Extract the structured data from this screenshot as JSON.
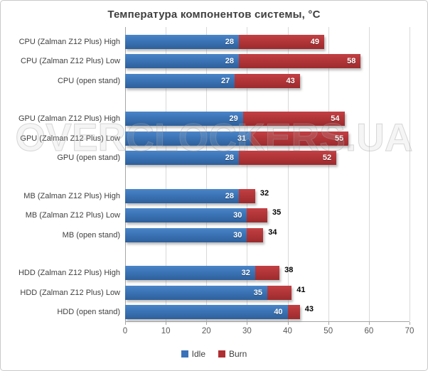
{
  "title": "Температура компонентов системы, °C",
  "watermark": "OVERCLOCKERS.UA",
  "legend": {
    "items": [
      {
        "label": "Idle",
        "color": "#3a72b9"
      },
      {
        "label": "Burn",
        "color": "#af2f32"
      }
    ]
  },
  "colors": {
    "idle_gradient_top": "#4a85c8",
    "idle_gradient_bottom": "#2e5f9a",
    "burn_gradient_top": "#c24044",
    "burn_gradient_bottom": "#9c2b2e",
    "gridline": "#d9d9d9",
    "axis_line": "#a6a6a6",
    "title_text": "#3f3f3f",
    "tick_text": "#595959"
  },
  "chart_data": {
    "type": "bar",
    "orientation": "horizontal",
    "title": "Температура компонентов системы, °C",
    "xlabel": "",
    "ylabel": "",
    "xlim": [
      0,
      70
    ],
    "xticks": [
      0,
      10,
      20,
      30,
      40,
      50,
      60,
      70
    ],
    "grid": true,
    "legend_position": "bottom",
    "series": [
      {
        "name": "Idle",
        "color": "#3a72b9"
      },
      {
        "name": "Burn",
        "color": "#af2f32"
      }
    ],
    "groups": [
      {
        "name": "CPU",
        "items": [
          {
            "label": "CPU (Zalman Z12 Plus) High",
            "idle": 28,
            "burn": 49
          },
          {
            "label": "CPU (Zalman Z12 Plus) Low",
            "idle": 28,
            "burn": 58
          },
          {
            "label": "CPU (open stand)",
            "idle": 27,
            "burn": 43
          }
        ]
      },
      {
        "name": "GPU",
        "items": [
          {
            "label": "GPU (Zalman Z12 Plus) High",
            "idle": 29,
            "burn": 54
          },
          {
            "label": "GPU (Zalman Z12 Plus) Low",
            "idle": 31,
            "burn": 55
          },
          {
            "label": "GPU (open stand)",
            "idle": 28,
            "burn": 52
          }
        ]
      },
      {
        "name": "MB",
        "items": [
          {
            "label": "MB (Zalman Z12 Plus) High",
            "idle": 28,
            "burn": 32
          },
          {
            "label": "MB (Zalman Z12 Plus) Low",
            "idle": 30,
            "burn": 35
          },
          {
            "label": "MB (open stand)",
            "idle": 30,
            "burn": 34
          }
        ]
      },
      {
        "name": "HDD",
        "items": [
          {
            "label": "HDD (Zalman Z12 Plus) High",
            "idle": 32,
            "burn": 38
          },
          {
            "label": "HDD (Zalman Z12 Plus) Low",
            "idle": 35,
            "burn": 41
          },
          {
            "label": "HDD (open stand)",
            "idle": 40,
            "burn": 43
          }
        ]
      }
    ]
  }
}
